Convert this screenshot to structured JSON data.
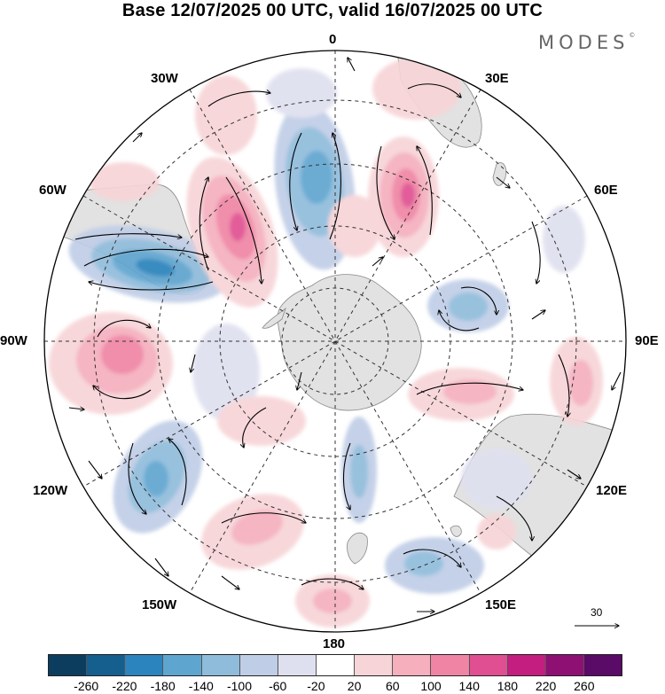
{
  "title": "Base 12/07/2025 00 UTC, valid 16/07/2025 00 UTC",
  "brand": {
    "name": "MODES",
    "mark": "©"
  },
  "map": {
    "projection": "south-polar-stereographic",
    "longitude_labels": [
      "0",
      "30E",
      "60E",
      "90E",
      "120E",
      "150E",
      "180",
      "150W",
      "120W",
      "90W",
      "60W",
      "30W"
    ],
    "grid": "dashed",
    "land_color": "#e2e2e2",
    "reference_vector": {
      "value": "30"
    }
  },
  "colorbar": {
    "ticks": [
      "-260",
      "-220",
      "-180",
      "-140",
      "-100",
      "-60",
      "-20",
      "20",
      "60",
      "100",
      "140",
      "180",
      "220",
      "260"
    ],
    "colors": [
      "#0d3d5e",
      "#145f8e",
      "#2b84bd",
      "#5ea5d0",
      "#8fbcdb",
      "#bfcde6",
      "#dfe0ef",
      "#ffffff",
      "#f7d4d7",
      "#f5afbd",
      "#ef84a4",
      "#e04f91",
      "#c31e80",
      "#8f1073",
      "#5a0a67"
    ]
  }
}
